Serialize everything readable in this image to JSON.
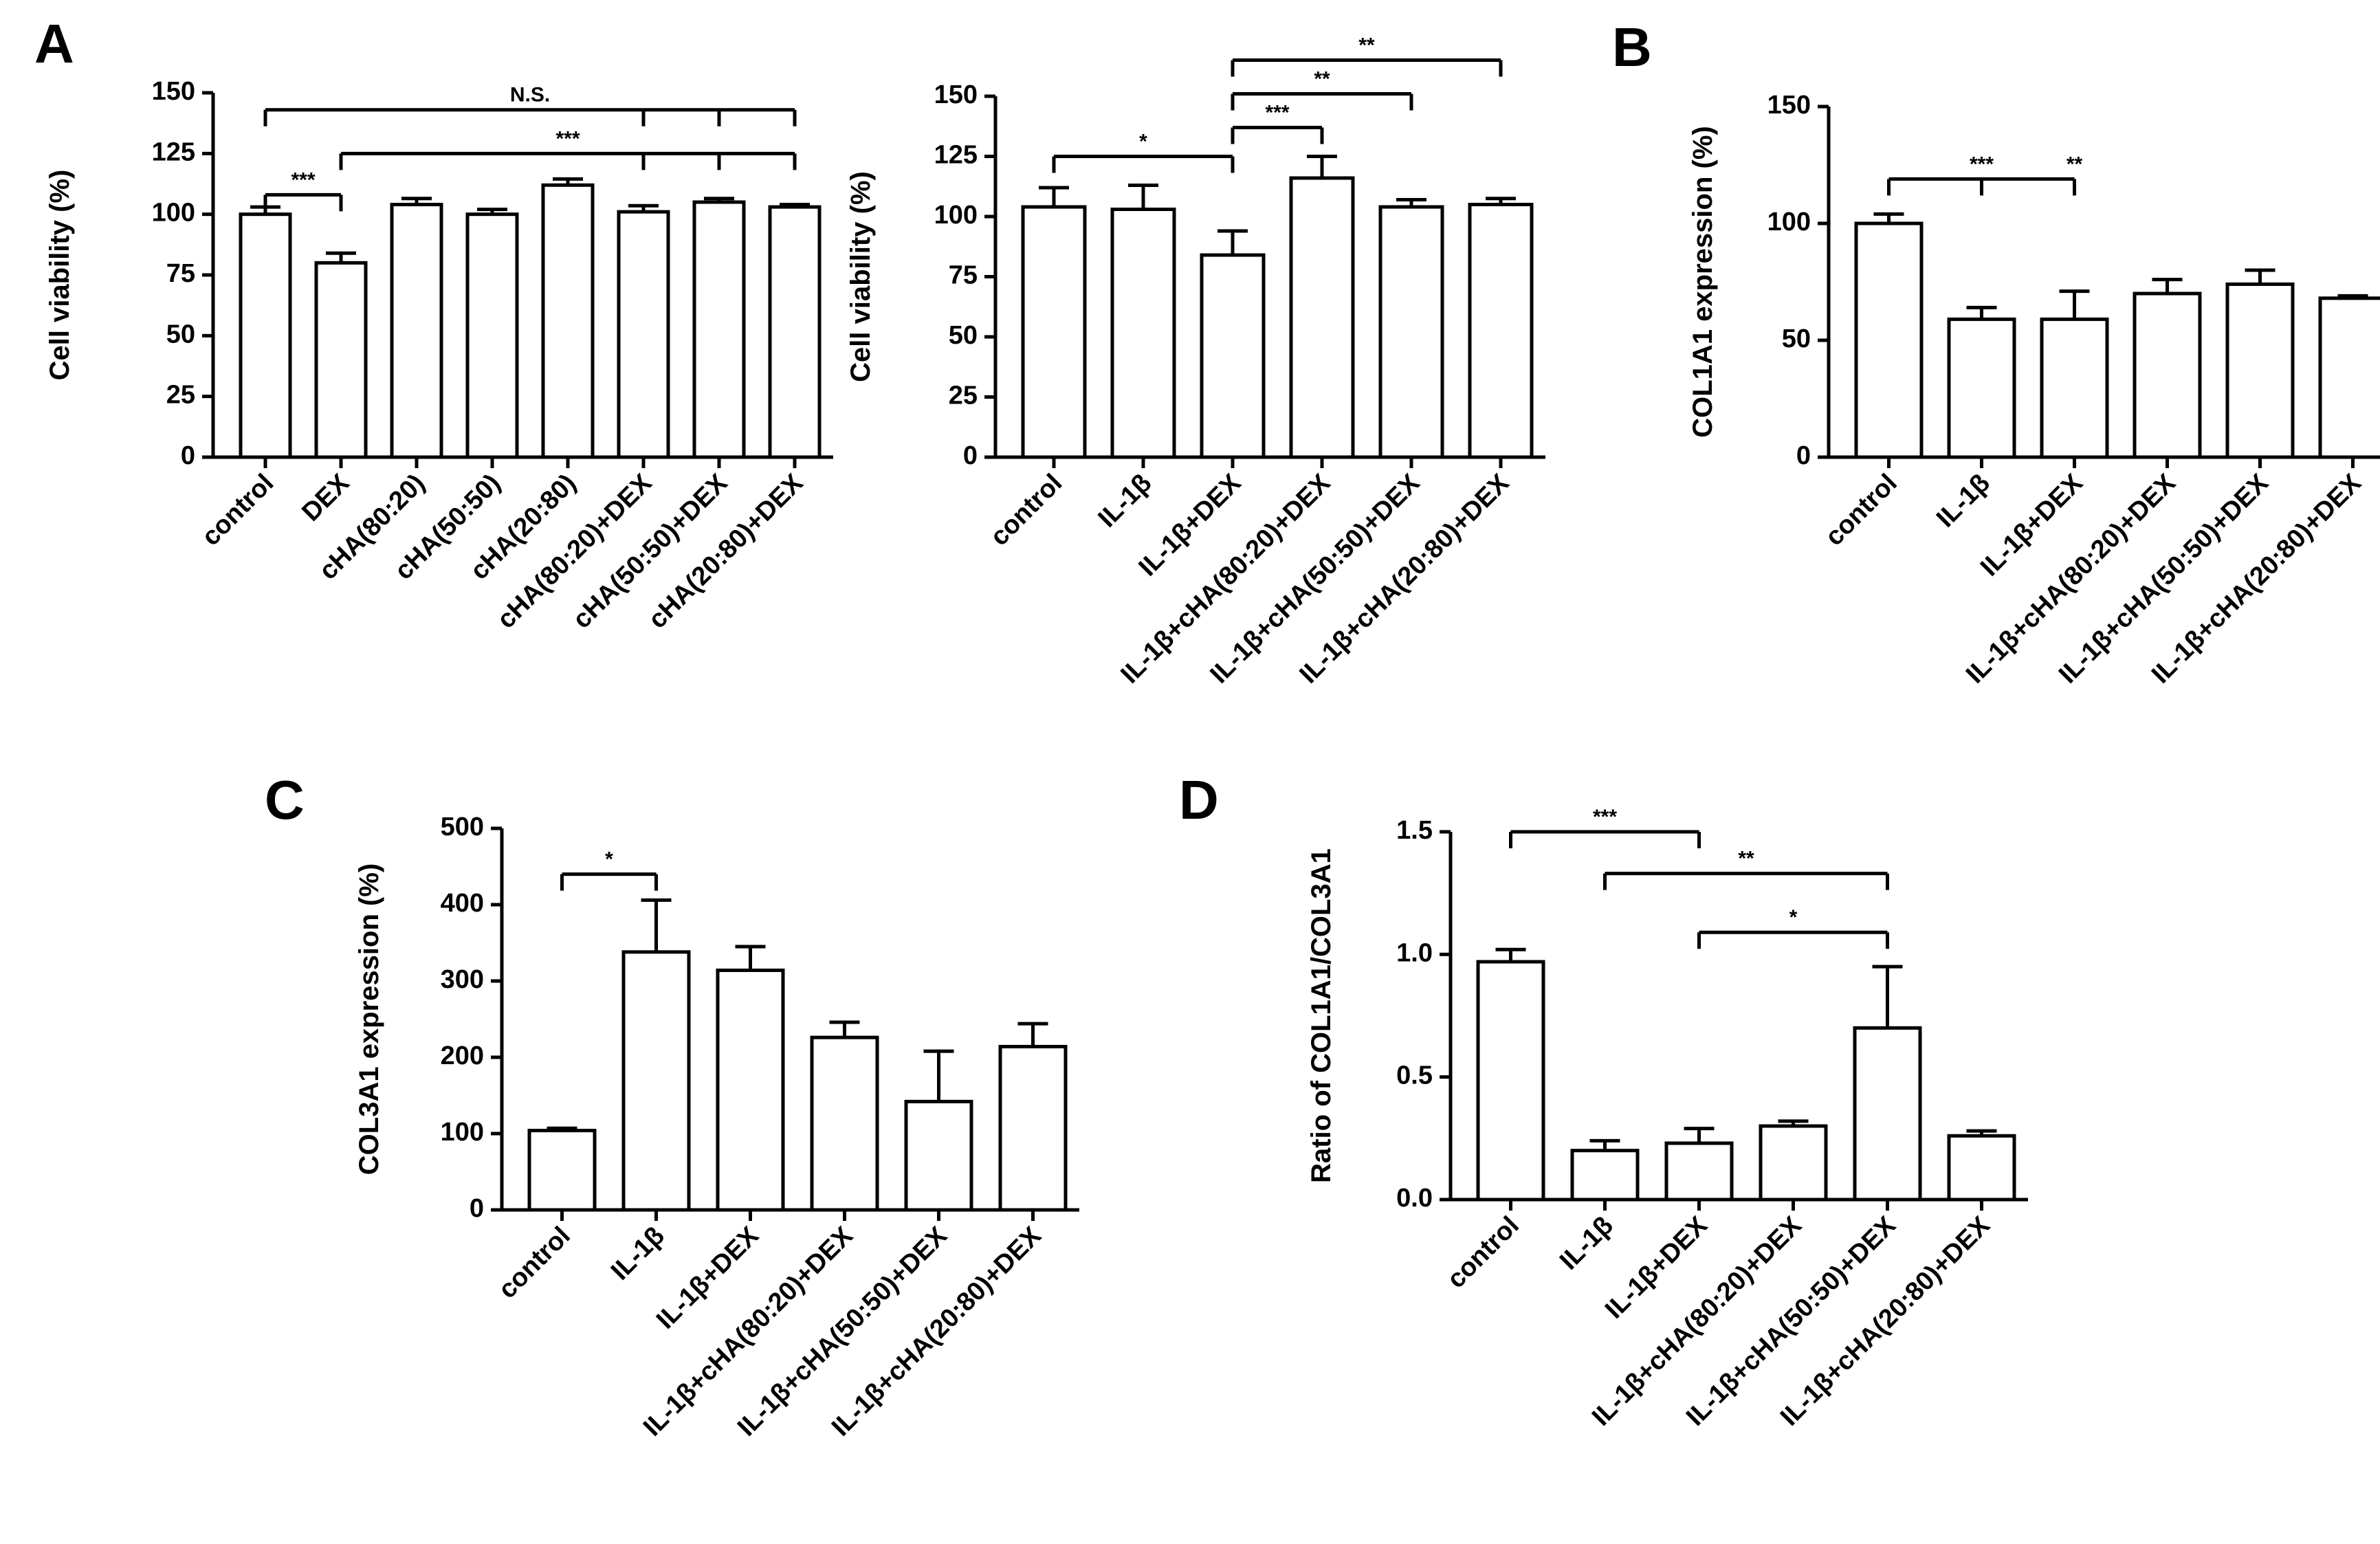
{
  "chart_data": [
    {
      "panel_label": "A",
      "type": "bar",
      "ylabel": "Cell viability (%)",
      "ylim": [
        0,
        150
      ],
      "yticks": [
        0,
        25,
        50,
        75,
        100,
        125,
        150
      ],
      "categories": [
        "control",
        "DEX",
        "cHA(80:20)",
        "cHA(50:50)",
        "cHA(20:80)",
        "cHA(80:20)+DEX",
        "cHA(50:50)+DEX",
        "cHA(20:80)+DEX"
      ],
      "values": [
        100,
        80,
        104,
        100,
        112,
        101,
        105,
        103
      ],
      "errors": [
        3,
        4,
        2.5,
        2,
        2.5,
        2.5,
        1.5,
        1
      ],
      "significance": [
        {
          "label": "***",
          "from": 0,
          "to": 1,
          "y": 108
        },
        {
          "label": "***",
          "from": 1,
          "to": 7,
          "y": 125,
          "drops": [
            5,
            6
          ]
        },
        {
          "label": "N.S.",
          "from": 0,
          "to": 7,
          "y": 143,
          "drops": [
            5,
            6
          ]
        }
      ]
    },
    {
      "panel_label": "",
      "type": "bar",
      "ylabel": "Cell viability (%)",
      "ylim": [
        0,
        150
      ],
      "yticks": [
        0,
        25,
        50,
        75,
        100,
        125,
        150
      ],
      "categories": [
        "control",
        "IL-1β",
        "IL-1β+DEX",
        "IL-1β+cHA(80:20)+DEX",
        "IL-1β+cHA(50:50)+DEX",
        "IL-1β+cHA(20:80)+DEX"
      ],
      "values": [
        104,
        103,
        84,
        116,
        104,
        105
      ],
      "errors": [
        8,
        10,
        10,
        9,
        3,
        2.5
      ],
      "significance": [
        {
          "label": "*",
          "from": 0,
          "to": 2,
          "y": 125
        },
        {
          "label": "***",
          "from": 2,
          "to": 3,
          "y": 137
        },
        {
          "label": "**",
          "from": 2,
          "to": 4,
          "y": 151
        },
        {
          "label": "**",
          "from": 2,
          "to": 5,
          "y": 165
        }
      ]
    },
    {
      "panel_label": "B",
      "type": "bar",
      "ylabel": "COL1A1 expression (%)",
      "ylim": [
        0,
        150
      ],
      "yticks": [
        0,
        50,
        100,
        150
      ],
      "categories": [
        "control",
        "IL-1β",
        "IL-1β+DEX",
        "IL-1β+cHA(80:20)+DEX",
        "IL-1β+cHA(50:50)+DEX",
        "IL-1β+cHA(20:80)+DEX"
      ],
      "values": [
        100,
        59,
        59,
        70,
        74,
        68
      ],
      "errors": [
        4,
        5,
        12,
        6,
        6,
        1
      ],
      "significance": [
        {
          "label": "***",
          "from": 0,
          "to": 2,
          "y": 119,
          "drops": [
            1
          ],
          "label_at": 1.0
        },
        {
          "label": "**",
          "from": 1,
          "to": 2,
          "y": 119,
          "no_line": true,
          "label_at": 2.0
        }
      ]
    },
    {
      "panel_label": "C",
      "type": "bar",
      "ylabel": "COL3A1 expression (%)",
      "ylim": [
        0,
        500
      ],
      "yticks": [
        0,
        100,
        200,
        300,
        400,
        500
      ],
      "categories": [
        "control",
        "IL-1β",
        "IL-1β+DEX",
        "IL-1β+cHA(80:20)+DEX",
        "IL-1β+cHA(50:50)+DEX",
        "IL-1β+cHA(20:80)+DEX"
      ],
      "values": [
        104,
        338,
        314,
        226,
        142,
        214
      ],
      "errors": [
        3,
        68,
        31,
        20,
        66,
        30
      ],
      "significance": [
        {
          "label": "*",
          "from": 0,
          "to": 1,
          "y": 440
        }
      ]
    },
    {
      "panel_label": "D",
      "type": "bar",
      "ylabel": "Ratio of COL1A1/COL3A1",
      "ylim": [
        0,
        1.5
      ],
      "yticks": [
        0.0,
        0.5,
        1.0,
        1.5
      ],
      "ytick_labels": [
        "0.0",
        "0.5",
        "1.0",
        "1.5"
      ],
      "categories": [
        "control",
        "IL-1β",
        "IL-1β+DEX",
        "IL-1β+cHA(80:20)+DEX",
        "IL-1β+cHA(50:50)+DEX",
        "IL-1β+cHA(20:80)+DEX"
      ],
      "values": [
        0.97,
        0.2,
        0.23,
        0.3,
        0.7,
        0.26
      ],
      "errors": [
        0.05,
        0.04,
        0.06,
        0.02,
        0.25,
        0.02
      ],
      "significance": [
        {
          "label": "***",
          "from": 0,
          "to": 2,
          "y": 1.5
        },
        {
          "label": "**",
          "from": 1,
          "to": 4,
          "y": 1.33
        },
        {
          "label": "*",
          "from": 2,
          "to": 4,
          "y": 1.09
        }
      ]
    }
  ]
}
